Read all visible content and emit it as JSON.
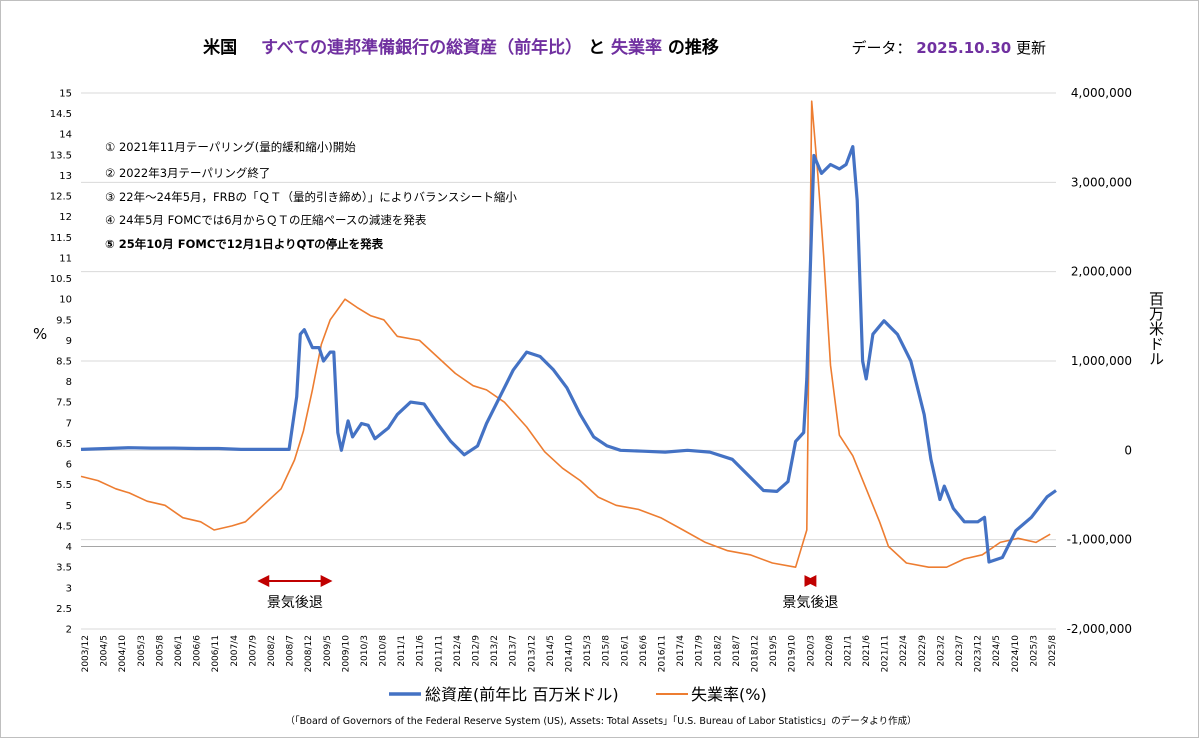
{
  "title": {
    "part1": "米国",
    "part2": "すべての連邦準備銀行の総資産（前年比）",
    "part3": "と",
    "part4": "失業率",
    "part5": "の推移"
  },
  "update": {
    "prefix": "データ：",
    "date": "2025.10.30",
    "suffix": "更新"
  },
  "annotations": [
    "① 2021年11月テーパリング(量的緩和縮小)開始",
    "② 2022年3月テーパリング終了",
    "③ 22年～24年5月，FRBの「ＱＴ（量的引き締め）」によりバランスシート縮小",
    "④ 24年5月 FOMCでは6月からＱＴの圧縮ペースの減速を発表",
    "⑤ 25年10月 FOMCで12月1日よりQTの停止を発表"
  ],
  "recessions": [
    {
      "label": "景気後退",
      "start": 2007.92,
      "end": 2009.5
    },
    {
      "label": "景気後退",
      "start": 2020.17,
      "end": 2020.33
    }
  ],
  "source": "（「Board of Governors of the Federal Reserve System (US), Assets: Total Assets」「U.S. Bureau of Labor Statistics」のデータより作成）",
  "colors": {
    "assets": "#4472C4",
    "unemployment": "#ED7D31",
    "recession": "#C00000",
    "title_accent": "#7030A0"
  },
  "chart_data": {
    "type": "line",
    "xlim": [
      2003.92,
      2025.75
    ],
    "x_tick_labels": [
      "2003/12",
      "2004/5",
      "2004/10",
      "2005/3",
      "2005/8",
      "2006/1",
      "2006/6",
      "2006/11",
      "2007/4",
      "2007/9",
      "2008/2",
      "2008/7",
      "2008/12",
      "2009/5",
      "2009/10",
      "2010/3",
      "2010/8",
      "2011/1",
      "2011/6",
      "2011/11",
      "2012/4",
      "2012/9",
      "2013/2",
      "2013/7",
      "2013/12",
      "2014/5",
      "2014/10",
      "2015/3",
      "2015/8",
      "2016/1",
      "2016/6",
      "2016/11",
      "2017/4",
      "2017/9",
      "2018/2",
      "2018/7",
      "2018/12",
      "2019/5",
      "2019/10",
      "2020/3",
      "2020/8",
      "2021/1",
      "2021/6",
      "2021/11",
      "2022/4",
      "2022/9",
      "2023/2",
      "2023/7",
      "2023/12",
      "2024/5",
      "2024/10",
      "2025/3",
      "2025/8"
    ],
    "y_left": {
      "label": "%",
      "range": [
        2,
        15
      ],
      "ticks": [
        "2",
        "2.5",
        "3",
        "3.5",
        "4",
        "4.5",
        "5",
        "5.5",
        "6",
        "6.5",
        "7",
        "7.5",
        "8",
        "8.5",
        "9",
        "9.5",
        "10",
        "10.5",
        "11",
        "11.5",
        "12",
        "12.5",
        "13",
        "13.5",
        "14",
        "14.5",
        "15"
      ]
    },
    "y_right": {
      "label": "百万米ドル",
      "range": [
        -2000000,
        4000000
      ],
      "ticks": [
        "-2,000,000",
        "-1,000,000",
        "0",
        "1,000,000",
        "2,000,000",
        "3,000,000",
        "4,000,000"
      ]
    },
    "series": [
      {
        "name": "総資産(前年比 百万米ドル)",
        "axis": "right",
        "points": [
          [
            2003.92,
            10000
          ],
          [
            2004.5,
            20000
          ],
          [
            2005.0,
            30000
          ],
          [
            2005.5,
            25000
          ],
          [
            2006.0,
            25000
          ],
          [
            2006.5,
            20000
          ],
          [
            2007.0,
            20000
          ],
          [
            2007.5,
            10000
          ],
          [
            2008.0,
            10000
          ],
          [
            2008.58,
            10000
          ],
          [
            2008.75,
            600000
          ],
          [
            2008.83,
            1300000
          ],
          [
            2008.92,
            1350000
          ],
          [
            2009.1,
            1150000
          ],
          [
            2009.25,
            1150000
          ],
          [
            2009.35,
            1000000
          ],
          [
            2009.5,
            1100000
          ],
          [
            2009.58,
            1100000
          ],
          [
            2009.67,
            200000
          ],
          [
            2009.75,
            0
          ],
          [
            2009.9,
            330000
          ],
          [
            2010.0,
            150000
          ],
          [
            2010.2,
            300000
          ],
          [
            2010.35,
            280000
          ],
          [
            2010.5,
            130000
          ],
          [
            2010.8,
            250000
          ],
          [
            2011.0,
            400000
          ],
          [
            2011.3,
            540000
          ],
          [
            2011.6,
            520000
          ],
          [
            2011.9,
            300000
          ],
          [
            2012.2,
            100000
          ],
          [
            2012.5,
            -50000
          ],
          [
            2012.8,
            50000
          ],
          [
            2013.0,
            300000
          ],
          [
            2013.3,
            600000
          ],
          [
            2013.6,
            900000
          ],
          [
            2013.9,
            1100000
          ],
          [
            2014.2,
            1050000
          ],
          [
            2014.5,
            900000
          ],
          [
            2014.8,
            700000
          ],
          [
            2015.1,
            400000
          ],
          [
            2015.4,
            150000
          ],
          [
            2015.7,
            50000
          ],
          [
            2016.0,
            0
          ],
          [
            2016.5,
            -10000
          ],
          [
            2017.0,
            -20000
          ],
          [
            2017.5,
            0
          ],
          [
            2018.0,
            -20000
          ],
          [
            2018.5,
            -100000
          ],
          [
            2018.9,
            -300000
          ],
          [
            2019.2,
            -450000
          ],
          [
            2019.5,
            -460000
          ],
          [
            2019.75,
            -350000
          ],
          [
            2019.92,
            100000
          ],
          [
            2020.1,
            200000
          ],
          [
            2020.17,
            800000
          ],
          [
            2020.33,
            3300000
          ],
          [
            2020.5,
            3100000
          ],
          [
            2020.7,
            3200000
          ],
          [
            2020.9,
            3150000
          ],
          [
            2021.05,
            3200000
          ],
          [
            2021.2,
            3400000
          ],
          [
            2021.3,
            2800000
          ],
          [
            2021.42,
            1000000
          ],
          [
            2021.5,
            800000
          ],
          [
            2021.65,
            1300000
          ],
          [
            2021.9,
            1450000
          ],
          [
            2022.2,
            1300000
          ],
          [
            2022.5,
            1000000
          ],
          [
            2022.8,
            400000
          ],
          [
            2022.95,
            -100000
          ],
          [
            2023.15,
            -550000
          ],
          [
            2023.25,
            -400000
          ],
          [
            2023.45,
            -650000
          ],
          [
            2023.7,
            -800000
          ],
          [
            2024.0,
            -800000
          ],
          [
            2024.15,
            -750000
          ],
          [
            2024.25,
            -1250000
          ],
          [
            2024.55,
            -1200000
          ],
          [
            2024.85,
            -900000
          ],
          [
            2025.2,
            -750000
          ],
          [
            2025.55,
            -520000
          ],
          [
            2025.75,
            -450000
          ]
        ]
      },
      {
        "name": "失業率(%)",
        "axis": "left",
        "points": [
          [
            2003.92,
            5.7
          ],
          [
            2004.3,
            5.6
          ],
          [
            2004.7,
            5.4
          ],
          [
            2005.0,
            5.3
          ],
          [
            2005.4,
            5.1
          ],
          [
            2005.8,
            5.0
          ],
          [
            2006.2,
            4.7
          ],
          [
            2006.6,
            4.6
          ],
          [
            2006.9,
            4.4
          ],
          [
            2007.3,
            4.5
          ],
          [
            2007.6,
            4.6
          ],
          [
            2008.0,
            5.0
          ],
          [
            2008.4,
            5.4
          ],
          [
            2008.7,
            6.1
          ],
          [
            2008.9,
            6.8
          ],
          [
            2009.1,
            7.8
          ],
          [
            2009.3,
            8.9
          ],
          [
            2009.5,
            9.5
          ],
          [
            2009.7,
            9.8
          ],
          [
            2009.83,
            10.0
          ],
          [
            2010.1,
            9.8
          ],
          [
            2010.4,
            9.6
          ],
          [
            2010.7,
            9.5
          ],
          [
            2011.0,
            9.1
          ],
          [
            2011.5,
            9.0
          ],
          [
            2011.9,
            8.6
          ],
          [
            2012.3,
            8.2
          ],
          [
            2012.7,
            7.9
          ],
          [
            2013.0,
            7.8
          ],
          [
            2013.4,
            7.5
          ],
          [
            2013.9,
            6.9
          ],
          [
            2014.3,
            6.3
          ],
          [
            2014.7,
            5.9
          ],
          [
            2015.1,
            5.6
          ],
          [
            2015.5,
            5.2
          ],
          [
            2015.9,
            5.0
          ],
          [
            2016.4,
            4.9
          ],
          [
            2016.9,
            4.7
          ],
          [
            2017.4,
            4.4
          ],
          [
            2017.9,
            4.1
          ],
          [
            2018.4,
            3.9
          ],
          [
            2018.9,
            3.8
          ],
          [
            2019.4,
            3.6
          ],
          [
            2019.92,
            3.5
          ],
          [
            2020.17,
            4.4
          ],
          [
            2020.28,
            14.8
          ],
          [
            2020.42,
            13.0
          ],
          [
            2020.55,
            11.0
          ],
          [
            2020.7,
            8.4
          ],
          [
            2020.9,
            6.7
          ],
          [
            2021.2,
            6.2
          ],
          [
            2021.5,
            5.4
          ],
          [
            2021.8,
            4.6
          ],
          [
            2022.0,
            4.0
          ],
          [
            2022.4,
            3.6
          ],
          [
            2022.9,
            3.5
          ],
          [
            2023.3,
            3.5
          ],
          [
            2023.7,
            3.7
          ],
          [
            2024.1,
            3.8
          ],
          [
            2024.5,
            4.1
          ],
          [
            2024.9,
            4.2
          ],
          [
            2025.3,
            4.1
          ],
          [
            2025.62,
            4.3
          ]
        ]
      }
    ],
    "legend": [
      "総資産(前年比 百万米ドル)",
      "失業率(%)"
    ],
    "legend_position": "bottom"
  }
}
